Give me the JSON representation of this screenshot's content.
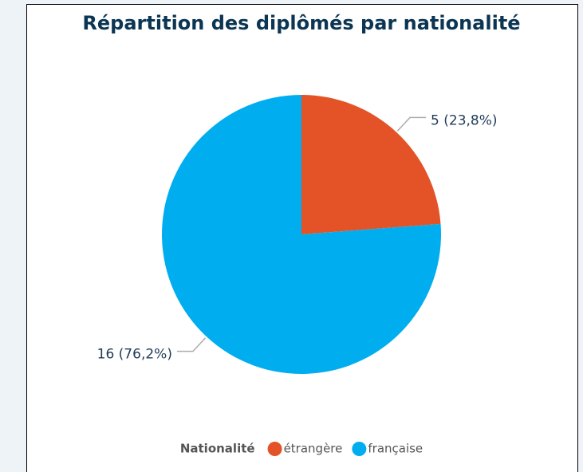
{
  "chart_data": {
    "type": "pie",
    "title": "Répartition des diplômés par nationalité",
    "legend_title": "Nationalité",
    "categories": [
      "étrangère",
      "française"
    ],
    "values": [
      5,
      16
    ],
    "value_labels": [
      "5 (23,8%)",
      "16 (76,2%)"
    ],
    "colors": [
      "#e35327",
      "#00aeef"
    ]
  }
}
